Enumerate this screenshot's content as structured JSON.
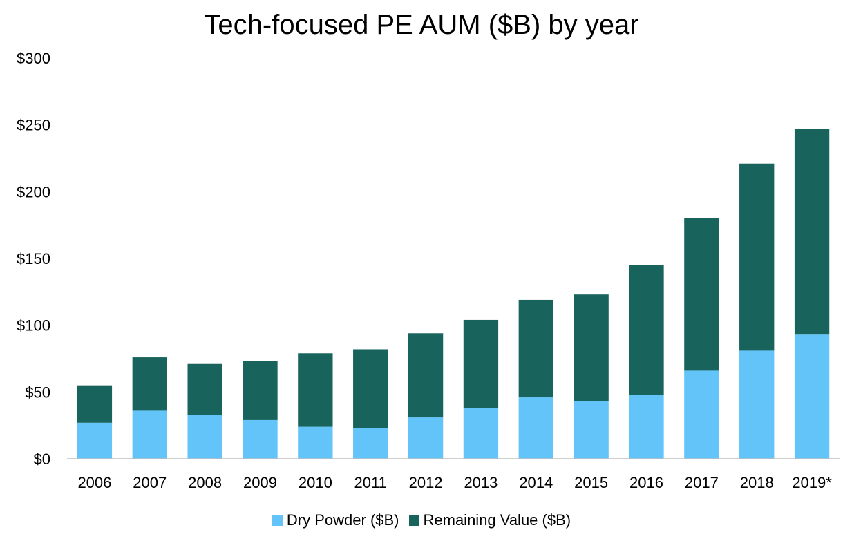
{
  "chart_data": {
    "type": "bar",
    "stacked": true,
    "title": "Tech-focused PE AUM ($B) by year",
    "xlabel": "",
    "ylabel": "",
    "categories": [
      "2006",
      "2007",
      "2008",
      "2009",
      "2010",
      "2011",
      "2012",
      "2013",
      "2014",
      "2015",
      "2016",
      "2017",
      "2018",
      "2019*"
    ],
    "series": [
      {
        "name": "Dry Powder ($B)",
        "color": "#62C4F8",
        "values": [
          27,
          36,
          33,
          29,
          24,
          23,
          31,
          38,
          46,
          43,
          48,
          66,
          81,
          93
        ]
      },
      {
        "name": "Remaining Value ($B)",
        "color": "#18645C",
        "values": [
          28,
          40,
          38,
          44,
          55,
          59,
          63,
          66,
          73,
          80,
          97,
          114,
          140,
          154
        ]
      }
    ],
    "ylim": [
      0,
      300
    ],
    "y_ticks": [
      0,
      50,
      100,
      150,
      200,
      250,
      300
    ],
    "y_tick_labels": [
      "$0",
      "$50",
      "$100",
      "$150",
      "$200",
      "$250",
      "$300"
    ],
    "grid": false,
    "legend_position": "bottom"
  }
}
